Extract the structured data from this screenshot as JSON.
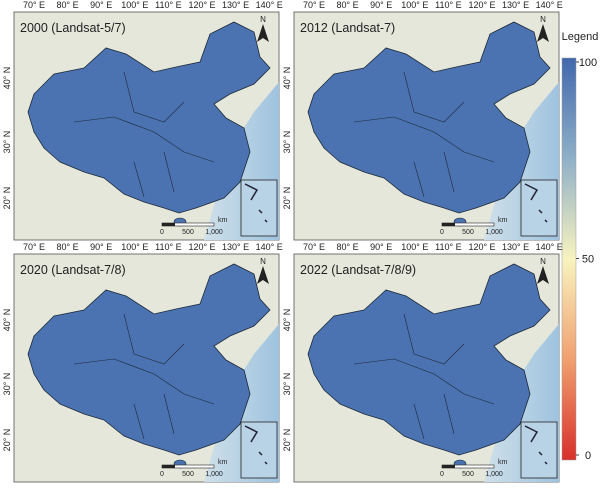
{
  "panels": [
    {
      "title": "2000 (Landsat-5/7)"
    },
    {
      "title": "2012 (Landsat-7)"
    },
    {
      "title": "2020 (Landsat-7/8)"
    },
    {
      "title": "2022 (Landsat-7/8/9)"
    }
  ],
  "longitude_labels": [
    "70° E",
    "80° E",
    "90° E",
    "100° E",
    "110° E",
    "120° E",
    "130° E",
    "140° E"
  ],
  "latitude_labels": [
    "40° N",
    "30° N",
    "20° N"
  ],
  "north_label": "N",
  "scale_bar": {
    "unit": "km",
    "labels": [
      "0",
      "500",
      "1,000"
    ]
  },
  "legend": {
    "title": "Legend",
    "ticks": [
      100,
      50,
      0
    ]
  }
}
